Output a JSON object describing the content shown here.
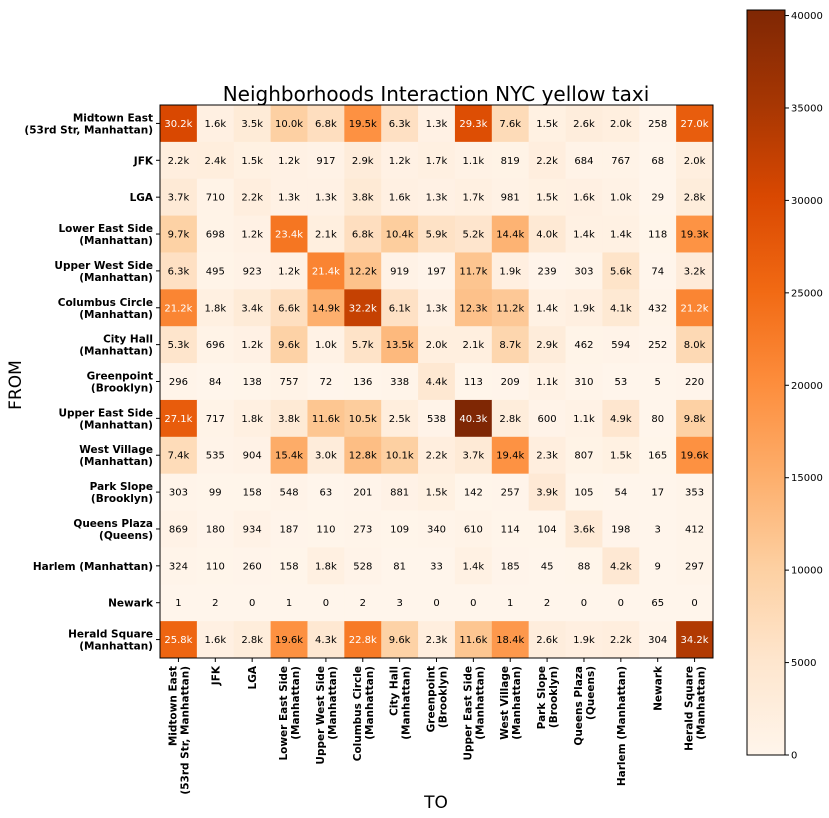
{
  "chart_data": {
    "type": "heatmap",
    "title": "Neighborhoods Interaction NYC yellow taxi",
    "xlabel": "TO",
    "ylabel": "FROM",
    "categories": [
      [
        "Midtown East",
        "(53rd Str, Manhattan)"
      ],
      [
        "JFK"
      ],
      [
        "LGA"
      ],
      [
        "Lower East Side",
        "(Manhattan)"
      ],
      [
        "Upper West Side",
        "(Manhattan)"
      ],
      [
        "Columbus Circle",
        "(Manhattan)"
      ],
      [
        "City Hall",
        "(Manhattan)"
      ],
      [
        "Greenpoint",
        "(Brooklyn)"
      ],
      [
        "Upper East Side",
        "(Manhattan)"
      ],
      [
        "West Village",
        "(Manhattan)"
      ],
      [
        "Park Slope",
        "(Brooklyn)"
      ],
      [
        "Queens Plaza",
        "(Queens)"
      ],
      [
        "Harlem (Manhattan)"
      ],
      [
        "Newark"
      ],
      [
        "Herald Square",
        "(Manhattan)"
      ]
    ],
    "values": [
      [
        30200,
        1600,
        3500,
        10000,
        6800,
        19500,
        6300,
        1300,
        29300,
        7600,
        1500,
        2600,
        2000,
        258,
        27000
      ],
      [
        2200,
        2400,
        1500,
        1200,
        917,
        2900,
        1200,
        1700,
        1100,
        819,
        2200,
        684,
        767,
        68,
        2000
      ],
      [
        3700,
        710,
        2200,
        1300,
        1300,
        3800,
        1600,
        1300,
        1700,
        981,
        1500,
        1600,
        1000,
        29,
        2800
      ],
      [
        9700,
        698,
        1200,
        23400,
        2100,
        6800,
        10400,
        5900,
        5200,
        14400,
        4000,
        1400,
        1400,
        118,
        19300
      ],
      [
        6300,
        495,
        923,
        1200,
        21400,
        12200,
        919,
        197,
        11700,
        1900,
        239,
        303,
        5600,
        74,
        3200
      ],
      [
        21200,
        1800,
        3400,
        6600,
        14900,
        32200,
        6100,
        1300,
        12300,
        11200,
        1400,
        1900,
        4100,
        432,
        21200
      ],
      [
        5300,
        696,
        1200,
        9600,
        1000,
        5700,
        13500,
        2000,
        2100,
        8700,
        2900,
        462,
        594,
        252,
        8000
      ],
      [
        296,
        84,
        138,
        757,
        72,
        136,
        338,
        4400,
        113,
        209,
        1100,
        310,
        53,
        5,
        220
      ],
      [
        27100,
        717,
        1800,
        3800,
        11600,
        10500,
        2500,
        538,
        40300,
        2800,
        600,
        1100,
        4900,
        80,
        9800
      ],
      [
        7400,
        535,
        904,
        15400,
        3000,
        12800,
        10100,
        2200,
        3700,
        19400,
        2300,
        807,
        1500,
        165,
        19600
      ],
      [
        303,
        99,
        158,
        548,
        63,
        201,
        881,
        1500,
        142,
        257,
        3900,
        105,
        54,
        17,
        353
      ],
      [
        869,
        180,
        934,
        187,
        110,
        273,
        109,
        340,
        610,
        114,
        104,
        3600,
        198,
        3,
        412
      ],
      [
        324,
        110,
        260,
        158,
        1800,
        528,
        81,
        33,
        1400,
        185,
        45,
        88,
        4200,
        9,
        297
      ],
      [
        1,
        2,
        0,
        1,
        0,
        2,
        3,
        0,
        0,
        1,
        2,
        0,
        0,
        65,
        0
      ],
      [
        25800,
        1600,
        2800,
        19600,
        4300,
        22800,
        9600,
        2300,
        11600,
        18400,
        2600,
        1900,
        2200,
        304,
        34200
      ]
    ],
    "cell_labels": [
      [
        "30.2k",
        "1.6k",
        "3.5k",
        "10.0k",
        "6.8k",
        "19.5k",
        "6.3k",
        "1.3k",
        "29.3k",
        "7.6k",
        "1.5k",
        "2.6k",
        "2.0k",
        "258",
        "27.0k"
      ],
      [
        "2.2k",
        "2.4k",
        "1.5k",
        "1.2k",
        "917",
        "2.9k",
        "1.2k",
        "1.7k",
        "1.1k",
        "819",
        "2.2k",
        "684",
        "767",
        "68",
        "2.0k"
      ],
      [
        "3.7k",
        "710",
        "2.2k",
        "1.3k",
        "1.3k",
        "3.8k",
        "1.6k",
        "1.3k",
        "1.7k",
        "981",
        "1.5k",
        "1.6k",
        "1.0k",
        "29",
        "2.8k"
      ],
      [
        "9.7k",
        "698",
        "1.2k",
        "23.4k",
        "2.1k",
        "6.8k",
        "10.4k",
        "5.9k",
        "5.2k",
        "14.4k",
        "4.0k",
        "1.4k",
        "1.4k",
        "118",
        "19.3k"
      ],
      [
        "6.3k",
        "495",
        "923",
        "1.2k",
        "21.4k",
        "12.2k",
        "919",
        "197",
        "11.7k",
        "1.9k",
        "239",
        "303",
        "5.6k",
        "74",
        "3.2k"
      ],
      [
        "21.2k",
        "1.8k",
        "3.4k",
        "6.6k",
        "14.9k",
        "32.2k",
        "6.1k",
        "1.3k",
        "12.3k",
        "11.2k",
        "1.4k",
        "1.9k",
        "4.1k",
        "432",
        "21.2k"
      ],
      [
        "5.3k",
        "696",
        "1.2k",
        "9.6k",
        "1.0k",
        "5.7k",
        "13.5k",
        "2.0k",
        "2.1k",
        "8.7k",
        "2.9k",
        "462",
        "594",
        "252",
        "8.0k"
      ],
      [
        "296",
        "84",
        "138",
        "757",
        "72",
        "136",
        "338",
        "4.4k",
        "113",
        "209",
        "1.1k",
        "310",
        "53",
        "5",
        "220"
      ],
      [
        "27.1k",
        "717",
        "1.8k",
        "3.8k",
        "11.6k",
        "10.5k",
        "2.5k",
        "538",
        "40.3k",
        "2.8k",
        "600",
        "1.1k",
        "4.9k",
        "80",
        "9.8k"
      ],
      [
        "7.4k",
        "535",
        "904",
        "15.4k",
        "3.0k",
        "12.8k",
        "10.1k",
        "2.2k",
        "3.7k",
        "19.4k",
        "2.3k",
        "807",
        "1.5k",
        "165",
        "19.6k"
      ],
      [
        "303",
        "99",
        "158",
        "548",
        "63",
        "201",
        "881",
        "1.5k",
        "142",
        "257",
        "3.9k",
        "105",
        "54",
        "17",
        "353"
      ],
      [
        "869",
        "180",
        "934",
        "187",
        "110",
        "273",
        "109",
        "340",
        "610",
        "114",
        "104",
        "3.6k",
        "198",
        "3",
        "412"
      ],
      [
        "324",
        "110",
        "260",
        "158",
        "1.8k",
        "528",
        "81",
        "33",
        "1.4k",
        "185",
        "45",
        "88",
        "4.2k",
        "9",
        "297"
      ],
      [
        "1",
        "2",
        "0",
        "1",
        "0",
        "2",
        "3",
        "0",
        "0",
        "1",
        "2",
        "0",
        "0",
        "65",
        "0"
      ],
      [
        "25.8k",
        "1.6k",
        "2.8k",
        "19.6k",
        "4.3k",
        "22.8k",
        "9.6k",
        "2.3k",
        "11.6k",
        "18.4k",
        "2.6k",
        "1.9k",
        "2.2k",
        "304",
        "34.2k"
      ]
    ],
    "colorbar": {
      "min": 0,
      "max": 40300,
      "ticks": [
        0,
        5000,
        10000,
        15000,
        20000,
        25000,
        30000,
        35000,
        40000
      ],
      "tick_labels": [
        "0",
        "5000",
        "10000",
        "15000",
        "20000",
        "25000",
        "30000",
        "35000",
        "40000"
      ],
      "colormap": "Oranges"
    },
    "colors": {
      "low": "#fff5eb",
      "mid": "#fd8d3c",
      "high": "#7f2704",
      "text_dark": "#000000",
      "text_light": "#ffffff"
    }
  }
}
